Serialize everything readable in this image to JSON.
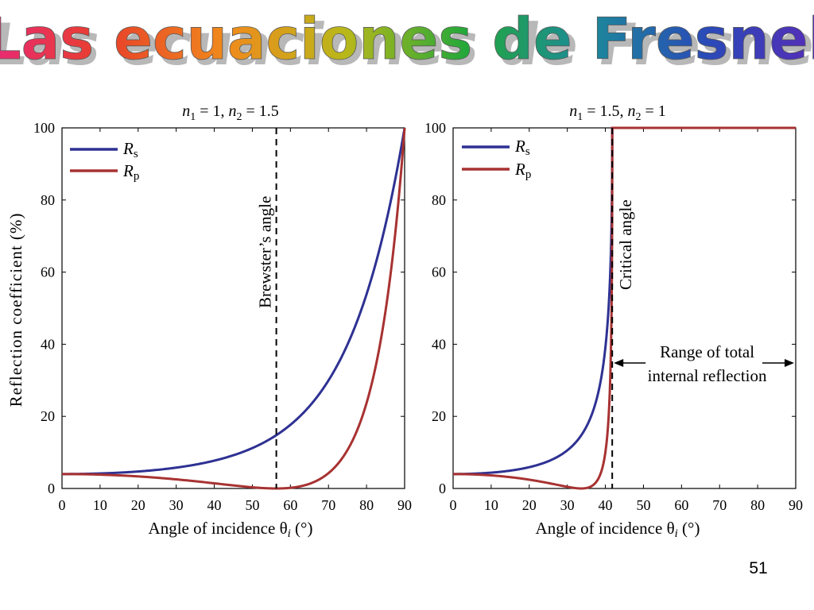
{
  "slide": {
    "title": "Las ecuaciones de Fresnel",
    "page_number": "51"
  },
  "colors": {
    "rs": "#2e3192",
    "rp": "#a83232",
    "title_gradient": [
      "#e8287a",
      "#e8402a",
      "#f08a1c",
      "#b8b81a",
      "#22a83a",
      "#1c8a9a",
      "#2a4ab8",
      "#5a2ab8"
    ]
  },
  "chart_data": [
    {
      "type": "line",
      "title_parts": {
        "n1_label": "n",
        "n1_sub": "1",
        "n1_val": " = 1,  ",
        "n2_label": "n",
        "n2_sub": "2",
        "n2_val": " = 1.5"
      },
      "xlabel": "Angle of incidence θ",
      "xlabel_sub": "i",
      "xlabel_unit": " (°)",
      "ylabel": "Reflection coefficient (%)",
      "xlim": [
        0,
        90
      ],
      "ylim": [
        0,
        100
      ],
      "xticks": [
        "0",
        "10",
        "20",
        "30",
        "40",
        "50",
        "60",
        "70",
        "80",
        "90"
      ],
      "yticks": [
        "0",
        "20",
        "40",
        "60",
        "80",
        "100"
      ],
      "n1": 1.0,
      "n2": 1.5,
      "legend": [
        {
          "label": "R",
          "sub": "s"
        },
        {
          "label": "R",
          "sub": "p"
        }
      ],
      "vline": {
        "x": 56.3,
        "label": "Brewster’s angle"
      },
      "series": [
        {
          "name": "Rs",
          "x": [
            0,
            20,
            40,
            56.3,
            70,
            80,
            90
          ],
          "y": [
            4.0,
            4.9,
            9.0,
            14.8,
            30.1,
            54.3,
            100
          ]
        },
        {
          "name": "Rp",
          "x": [
            0,
            20,
            40,
            56.3,
            70,
            80,
            90
          ],
          "y": [
            4.0,
            3.2,
            1.1,
            0.0,
            7.5,
            38.6,
            100
          ]
        }
      ]
    },
    {
      "type": "line",
      "title_parts": {
        "n1_label": "n",
        "n1_sub": "1",
        "n1_val": " = 1.5,  ",
        "n2_label": "n",
        "n2_sub": "2",
        "n2_val": " = 1"
      },
      "xlabel": "Angle of incidence θ",
      "xlabel_sub": "i",
      "xlabel_unit": " (°)",
      "ylabel": "",
      "xlim": [
        0,
        90
      ],
      "ylim": [
        0,
        100
      ],
      "xticks": [
        "0",
        "10",
        "20",
        "30",
        "40",
        "50",
        "60",
        "70",
        "80",
        "90"
      ],
      "yticks": [
        "0",
        "20",
        "40",
        "60",
        "80",
        "100"
      ],
      "n1": 1.5,
      "n2": 1.0,
      "legend": [
        {
          "label": "R",
          "sub": "s"
        },
        {
          "label": "R",
          "sub": "p"
        }
      ],
      "vline": {
        "x": 41.8,
        "label": "Critical angle"
      },
      "annotation": {
        "line1": "Range of total",
        "line2": "internal reflection",
        "x_from": 41.8,
        "x_to": 90
      },
      "series": [
        {
          "name": "Rs",
          "x": [
            0,
            10,
            20,
            30,
            35,
            40,
            41.8,
            60,
            90
          ],
          "y": [
            4.0,
            4.4,
            5.7,
            11.0,
            18.5,
            52.0,
            100,
            100,
            100
          ]
        },
        {
          "name": "Rp",
          "x": [
            0,
            10,
            20,
            30,
            33.7,
            40,
            41.8,
            60,
            90
          ],
          "y": [
            4.0,
            3.6,
            2.5,
            0.6,
            0.0,
            25.0,
            100,
            100,
            100
          ]
        }
      ]
    }
  ]
}
